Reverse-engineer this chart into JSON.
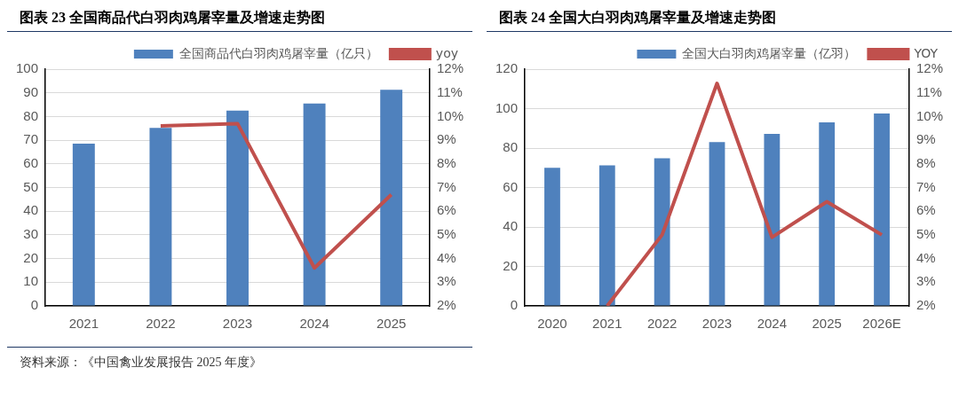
{
  "chart_data": [
    {
      "type": "bar",
      "title": "图表 23  全国商品代白羽肉鸡屠宰量及增速走势图",
      "categories": [
        "2021",
        "2022",
        "2023",
        "2024",
        "2025"
      ],
      "series": [
        {
          "name": "全国商品代白羽肉鸡屠宰量（亿只）",
          "color": "#4f81bd",
          "values": [
            68.5,
            75.2,
            82.5,
            85.5,
            91.3
          ]
        },
        {
          "name": "yoy",
          "type": "line",
          "axis": "y2",
          "color": "#c0504d",
          "values": [
            null,
            9.6,
            9.7,
            3.6,
            6.7
          ]
        }
      ],
      "ylim": [
        0,
        100
      ],
      "yticks": [
        0,
        10,
        20,
        30,
        40,
        50,
        60,
        70,
        80,
        90,
        100
      ],
      "y2lim": [
        2,
        12
      ],
      "y2ticks": [
        {
          "value": 2,
          "label": "2%"
        },
        {
          "value": 3,
          "label": "3%"
        },
        {
          "value": 4,
          "label": "4%"
        },
        {
          "value": 5,
          "label": "5%"
        },
        {
          "value": 6,
          "label": "6%"
        },
        {
          "value": 7,
          "label": "7%"
        },
        {
          "value": 8,
          "label": "8%"
        },
        {
          "value": 9,
          "label": "9%"
        },
        {
          "value": 10,
          "label": "10%"
        },
        {
          "value": 11,
          "label": "11%"
        },
        {
          "value": 12,
          "label": "12%"
        }
      ],
      "grid": "y",
      "legend": "top",
      "marker": "none",
      "annotations": [
        "资料来源：《中国禽业发展报告 2025 年度》"
      ]
    },
    {
      "type": "bar",
      "title": "图表 24  全国大白羽肉鸡屠宰量及增速走势图",
      "categories": [
        "2020",
        "2021",
        "2022",
        "2023",
        "2024",
        "2025",
        "2026E"
      ],
      "series": [
        {
          "name": "全国大白羽肉鸡屠宰量（亿羽）",
          "color": "#4f81bd",
          "values": [
            70,
            71.2,
            74.8,
            83,
            87.2,
            93,
            97.5
          ]
        },
        {
          "name": "YOY",
          "type": "line",
          "axis": "y2",
          "color": "#c0504d",
          "values": [
            null,
            2.0,
            5.0,
            11.4,
            4.9,
            6.4,
            5.0
          ]
        }
      ],
      "ylim": [
        0,
        120
      ],
      "yticks": [
        0,
        20,
        40,
        60,
        80,
        100,
        120
      ],
      "y2lim": [
        2,
        12
      ],
      "y2ticks": [
        {
          "value": 2,
          "label": "2%"
        },
        {
          "value": 3,
          "label": "3%"
        },
        {
          "value": 4,
          "label": "4%"
        },
        {
          "value": 5,
          "label": "5%"
        },
        {
          "value": 6,
          "label": "6%"
        },
        {
          "value": 7,
          "label": "7%"
        },
        {
          "value": 8,
          "label": "8%"
        },
        {
          "value": 9,
          "label": "9%"
        },
        {
          "value": 10,
          "label": "10%"
        },
        {
          "value": 11,
          "label": "11%"
        },
        {
          "value": 12,
          "label": "12%"
        }
      ],
      "grid": "y",
      "legend": "top",
      "marker": "none"
    }
  ]
}
